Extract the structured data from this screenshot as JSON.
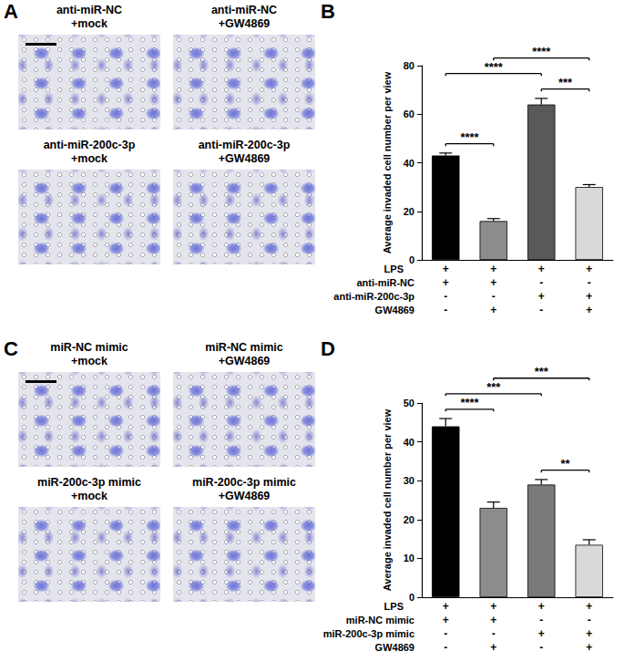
{
  "panels": [
    {
      "label": "A",
      "images": [
        [
          "anti-miR-NC",
          "+mock"
        ],
        [
          "anti-miR-NC",
          "+GW4869"
        ],
        [
          "anti-miR-200c-3p",
          "+mock"
        ],
        [
          "anti-miR-200c-3p",
          "+GW4869"
        ]
      ]
    },
    {
      "label": "C",
      "images": [
        [
          "miR-NC mimic",
          "+mock"
        ],
        [
          "miR-NC mimic",
          "+GW4869"
        ],
        [
          "miR-200c-3p mimic",
          "+mock"
        ],
        [
          "miR-200c-3p mimic",
          "+GW4869"
        ]
      ]
    }
  ],
  "chart_data": [
    {
      "panel": "B",
      "type": "bar",
      "y_label": "Average invaded cell number per view",
      "values": [
        43,
        16,
        64,
        30
      ],
      "errors": [
        1,
        1,
        2.5,
        1
      ],
      "colors": [
        "#000000",
        "#8c8c8c",
        "#595959",
        "#d9d9d9"
      ],
      "ylim": [
        0,
        80
      ],
      "yticks": [
        0,
        20,
        40,
        60,
        80
      ],
      "grid": false,
      "conditions": [
        {
          "label": "LPS",
          "signs": [
            "+",
            "+",
            "+",
            "+"
          ]
        },
        {
          "label": "anti-miR-NC",
          "signs": [
            "+",
            "+",
            "-",
            "-"
          ]
        },
        {
          "label": "anti-miR-200c-3p",
          "signs": [
            "-",
            "-",
            "+",
            "+"
          ]
        },
        {
          "label": "GW4869",
          "signs": [
            "-",
            "+",
            "-",
            "+"
          ]
        }
      ],
      "significance": [
        {
          "from": 0,
          "to": 1,
          "label": "****"
        },
        {
          "from": 2,
          "to": 3,
          "label": "***"
        },
        {
          "from": 0,
          "to": 2,
          "label": "****"
        },
        {
          "from": 1,
          "to": 3,
          "label": "****"
        }
      ]
    },
    {
      "panel": "D",
      "type": "bar",
      "y_label": "Average invaded cell number per view",
      "values": [
        44,
        23,
        29,
        13.5
      ],
      "errors": [
        2,
        1.5,
        1.3,
        1.3
      ],
      "colors": [
        "#000000",
        "#8c8c8c",
        "#7a7a7a",
        "#d9d9d9"
      ],
      "ylim": [
        0,
        50
      ],
      "yticks": [
        0,
        10,
        20,
        30,
        40,
        50
      ],
      "grid": false,
      "conditions": [
        {
          "label": "LPS",
          "signs": [
            "+",
            "+",
            "+",
            "+"
          ]
        },
        {
          "label": "miR-NC mimic",
          "signs": [
            "+",
            "+",
            "-",
            "-"
          ]
        },
        {
          "label": "miR-200c-3p mimic",
          "signs": [
            "-",
            "-",
            "+",
            "+"
          ]
        },
        {
          "label": "GW4869",
          "signs": [
            "-",
            "+",
            "-",
            "+"
          ]
        }
      ],
      "significance": [
        {
          "from": 0,
          "to": 1,
          "label": "****"
        },
        {
          "from": 2,
          "to": 3,
          "label": "**"
        },
        {
          "from": 0,
          "to": 2,
          "label": "***"
        },
        {
          "from": 1,
          "to": 3,
          "label": "***"
        }
      ]
    }
  ]
}
